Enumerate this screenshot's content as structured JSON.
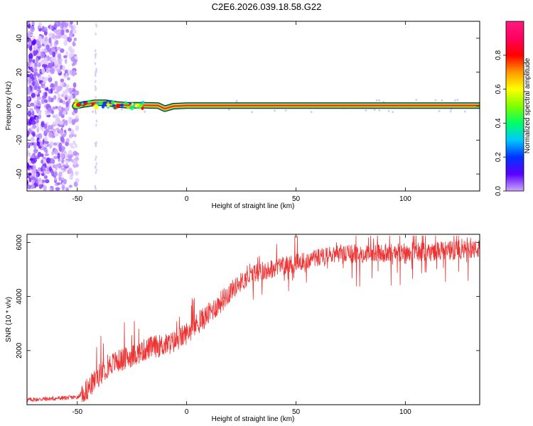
{
  "title": "C2E6.2026.039.18.58.G22",
  "chart_data": [
    {
      "type": "heatmap",
      "xlabel": "Height of straight line (km)",
      "ylabel": "Frequency (Hz)",
      "xlim": [
        -73,
        134
      ],
      "ylim": [
        -50,
        50
      ],
      "xticks": [
        -50,
        0,
        50,
        100
      ],
      "yticks": [
        -40,
        -20,
        0,
        20,
        40
      ],
      "grid": false,
      "colorbar": {
        "label": "Normalized spectral amplitude",
        "range": [
          0,
          1
        ],
        "ticks": [
          "0.0",
          "0.2",
          "0.4",
          "0.6",
          "0.8"
        ],
        "colors": [
          "#cfa8ff",
          "#5a00ff",
          "#0033ff",
          "#00c8ff",
          "#00ff66",
          "#7fff00",
          "#ffff00",
          "#ff9900",
          "#ff0000",
          "#ff0060",
          "#ff1a80"
        ]
      },
      "band_center_hz": [
        [
          -51,
          0
        ],
        [
          -47,
          1
        ],
        [
          -42,
          2
        ],
        [
          -37,
          2
        ],
        [
          -32,
          1
        ],
        [
          -27,
          0.5
        ],
        [
          -20,
          0.5
        ],
        [
          -13,
          0.3
        ],
        [
          -10,
          -1.5
        ],
        [
          -6,
          0
        ],
        [
          0,
          0.3
        ],
        [
          10,
          0.3
        ],
        [
          50,
          0.3
        ],
        [
          100,
          0.3
        ],
        [
          134,
          0.3
        ]
      ],
      "noise_region_km": [
        -73,
        -50
      ]
    },
    {
      "type": "line",
      "xlabel": "Height of straight line (km)",
      "ylabel": "SNR (10 * v/v)",
      "xlim": [
        -73,
        134
      ],
      "ylim": [
        0,
        6300
      ],
      "xticks": [
        -50,
        0,
        50,
        100
      ],
      "yticks": [
        2000,
        4000,
        6000
      ],
      "grid": false,
      "color": "#ee3333",
      "envelope": {
        "x": [
          -73,
          -60,
          -50,
          -45,
          -40,
          -35,
          -30,
          -25,
          -20,
          -15,
          -10,
          -5,
          0,
          5,
          10,
          15,
          20,
          25,
          30,
          35,
          40,
          45,
          50,
          55,
          60,
          70,
          80,
          90,
          100,
          110,
          120,
          134
        ],
        "y": [
          180,
          230,
          280,
          600,
          1100,
          1500,
          1650,
          1800,
          2000,
          2150,
          2200,
          2350,
          2650,
          3000,
          3350,
          3750,
          4200,
          4550,
          4800,
          4950,
          5050,
          5150,
          5250,
          5350,
          5450,
          5550,
          5600,
          5600,
          5650,
          5650,
          5700,
          5750
        ]
      }
    }
  ]
}
